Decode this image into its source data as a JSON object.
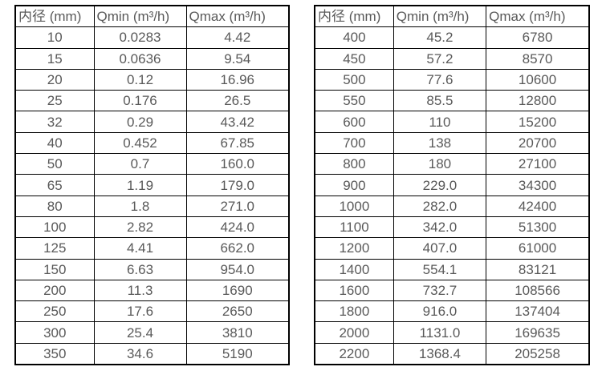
{
  "colors": {
    "background": "#ffffff",
    "border": "#000000",
    "text": "#595959"
  },
  "tables": [
    {
      "name": "flow-table-small-diameters",
      "headers": [
        "内径 (mm)",
        "Qmin (m³/h)",
        "Qmax (m³/h)"
      ],
      "rows": [
        [
          "10",
          "0.0283",
          "4.42"
        ],
        [
          "15",
          "0.0636",
          "9.54"
        ],
        [
          "20",
          "0.12",
          "16.96"
        ],
        [
          "25",
          "0.176",
          "26.5"
        ],
        [
          "32",
          "0.29",
          "43.42"
        ],
        [
          "40",
          "0.452",
          "67.85"
        ],
        [
          "50",
          "0.7",
          "160.0"
        ],
        [
          "65",
          "1.19",
          "179.0"
        ],
        [
          "80",
          "1.8",
          "271.0"
        ],
        [
          "100",
          "2.82",
          "424.0"
        ],
        [
          "125",
          "4.41",
          "662.0"
        ],
        [
          "150",
          "6.63",
          "954.0"
        ],
        [
          "200",
          "11.3",
          "1690"
        ],
        [
          "250",
          "17.6",
          "2650"
        ],
        [
          "300",
          "25.4",
          "3810"
        ],
        [
          "350",
          "34.6",
          "5190"
        ]
      ]
    },
    {
      "name": "flow-table-large-diameters",
      "headers": [
        "内径 (mm)",
        "Qmin (m³/h)",
        "Qmax (m³/h)"
      ],
      "rows": [
        [
          "400",
          "45.2",
          "6780"
        ],
        [
          "450",
          "57.2",
          "8570"
        ],
        [
          "500",
          "77.6",
          "10600"
        ],
        [
          "550",
          "85.5",
          "12800"
        ],
        [
          "600",
          "110",
          "15200"
        ],
        [
          "700",
          "138",
          "20700"
        ],
        [
          "800",
          "180",
          "27100"
        ],
        [
          "900",
          "229.0",
          "34300"
        ],
        [
          "1000",
          "282.0",
          "42400"
        ],
        [
          "1100",
          "342.0",
          "51300"
        ],
        [
          "1200",
          "407.0",
          "61000"
        ],
        [
          "1400",
          "554.1",
          "83121"
        ],
        [
          "1600",
          "732.7",
          "108566"
        ],
        [
          "1800",
          "916.0",
          "137404"
        ],
        [
          "2000",
          "1131.0",
          "169635"
        ],
        [
          "2200",
          "1368.4",
          "205258"
        ]
      ]
    }
  ]
}
